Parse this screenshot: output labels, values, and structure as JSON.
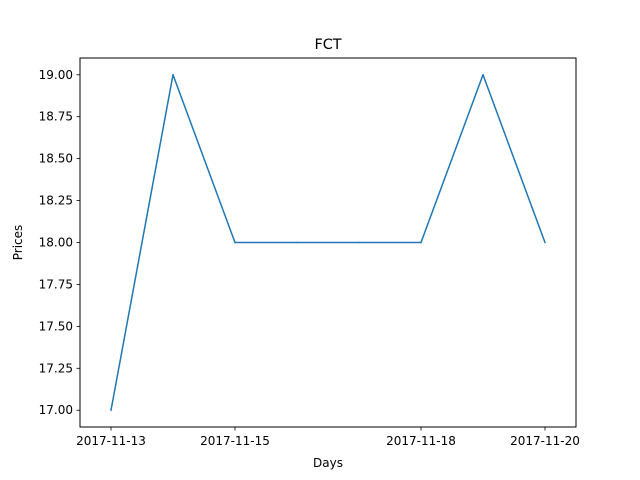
{
  "chart_data": {
    "type": "line",
    "title": "FCT",
    "xlabel": "Days",
    "ylabel": "Prices",
    "series": [
      {
        "color": "#1f77b4",
        "points": [
          {
            "x": "2017-11-13",
            "y": 17.0
          },
          {
            "x": "2017-11-14",
            "y": 19.0
          },
          {
            "x": "2017-11-15",
            "y": 18.0
          },
          {
            "x": "2017-11-16",
            "y": 18.0
          },
          {
            "x": "2017-11-17",
            "y": 18.0
          },
          {
            "x": "2017-11-18",
            "y": 18.0
          },
          {
            "x": "2017-11-19",
            "y": 19.0
          },
          {
            "x": "2017-11-20",
            "y": 18.0
          }
        ]
      }
    ],
    "xlim": [
      "2017-11-12T12:00",
      "2017-11-20T12:00"
    ],
    "ylim": [
      16.9,
      19.1
    ],
    "xticks": [
      "2017-11-13",
      "2017-11-15",
      "2017-11-18",
      "2017-11-20"
    ],
    "yticks": [
      {
        "value": 17.0,
        "label": "17.00"
      },
      {
        "value": 17.25,
        "label": "17.25"
      },
      {
        "value": 17.5,
        "label": "17.50"
      },
      {
        "value": 17.75,
        "label": "17.75"
      },
      {
        "value": 18.0,
        "label": "18.00"
      },
      {
        "value": 18.25,
        "label": "18.25"
      },
      {
        "value": 18.5,
        "label": "18.50"
      },
      {
        "value": 18.75,
        "label": "18.75"
      },
      {
        "value": 19.0,
        "label": "19.00"
      }
    ],
    "grid": false,
    "legend": "none"
  }
}
